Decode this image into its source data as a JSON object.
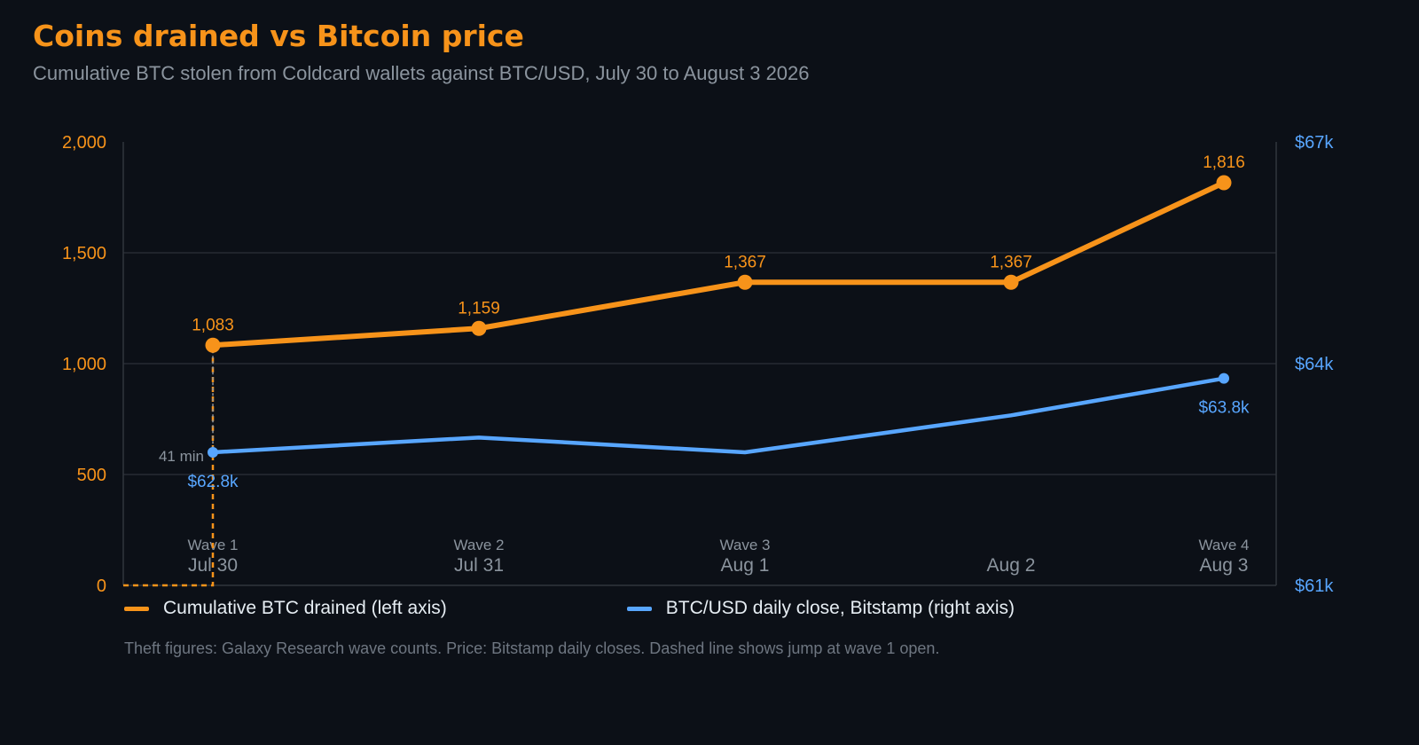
{
  "header": {
    "title": "Coins drained vs Bitcoin price",
    "subtitle": "Cumulative BTC stolen from Coldcard wallets against BTC/USD, July 30 to August 3 2026"
  },
  "chart_data": {
    "type": "line",
    "categories": [
      "Jul 30",
      "Jul 31",
      "Aug 1",
      "Aug 2",
      "Aug 3"
    ],
    "wave_labels": [
      "Wave 1",
      "Wave 2",
      "Wave 3",
      "",
      "Wave 4"
    ],
    "left_axis": {
      "ylim": [
        0,
        2000
      ],
      "ticks": [
        0,
        500,
        1000,
        1500,
        2000
      ],
      "tick_labels": [
        "0",
        "500",
        "1,000",
        "1,500",
        "2,000"
      ]
    },
    "right_axis": {
      "ylim": [
        61000,
        67000
      ],
      "ticks": [
        61000,
        64000,
        67000
      ],
      "tick_labels": [
        "$61k",
        "$64k",
        "$67k"
      ]
    },
    "grid": true,
    "series": [
      {
        "name": "Cumulative BTC drained (left axis)",
        "axis": "left",
        "color": "#f7931a",
        "values": [
          1083,
          1159,
          1367,
          1367,
          1816
        ],
        "labels": [
          "1,083",
          "1,159",
          "1,367",
          "1,367",
          "1,816"
        ]
      },
      {
        "name": "BTC/USD daily close, Bitstamp (right axis)",
        "axis": "right",
        "color": "#58a6ff",
        "values": [
          62800,
          63000,
          62800,
          63300,
          63800
        ],
        "labels": [
          "$62.8k",
          "",
          "",
          "",
          "$63.8k"
        ]
      }
    ],
    "annotation": {
      "text": "41 min",
      "note": "Dashed line shows jump from 0 to 1,083 at wave 1 open"
    },
    "legend_placement": "bottom"
  },
  "footnote": "Theft figures: Galaxy Research wave counts. Price: Bitstamp daily closes. Dashed line shows jump at wave 1 open."
}
